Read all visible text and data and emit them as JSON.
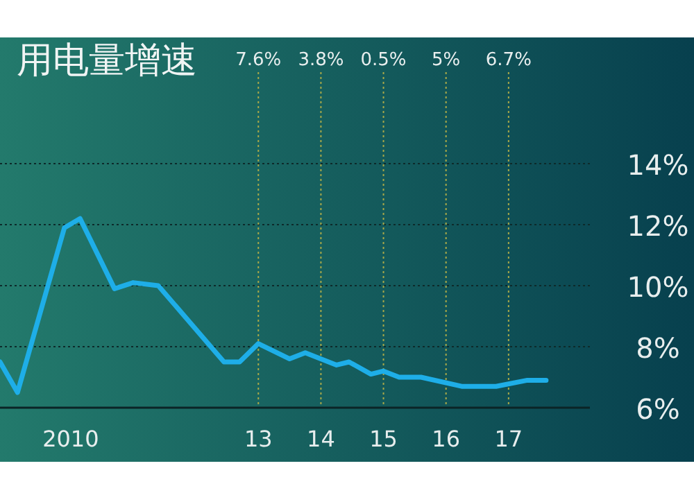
{
  "chart_data": {
    "type": "line",
    "title": "用电量增速",
    "x": [
      2008.87,
      2009.15,
      2009.9,
      2010.15,
      2010.7,
      2011.0,
      2011.4,
      2012.45,
      2012.7,
      2013.0,
      2013.5,
      2013.75,
      2014.25,
      2014.45,
      2014.8,
      2015.0,
      2015.25,
      2015.6,
      2016.25,
      2016.8,
      2017.3,
      2017.6
    ],
    "values": [
      7.5,
      6.5,
      11.9,
      12.2,
      9.9,
      10.1,
      10.0,
      7.5,
      7.5,
      8.1,
      7.6,
      7.8,
      7.4,
      7.5,
      7.1,
      7.2,
      7.0,
      7.0,
      6.7,
      6.7,
      6.9,
      6.9
    ],
    "color": "#1eaee8",
    "xlim": [
      2008.87,
      2018.3
    ],
    "xticks": [
      {
        "value": 2010,
        "label": "2010"
      },
      {
        "value": 2013,
        "label": "13"
      },
      {
        "value": 2014,
        "label": "14"
      },
      {
        "value": 2015,
        "label": "15"
      },
      {
        "value": 2016,
        "label": "16"
      },
      {
        "value": 2017,
        "label": "17"
      }
    ],
    "ylim": [
      6,
      17
    ],
    "yticks": [
      {
        "value": 6,
        "label": "6%"
      },
      {
        "value": 8,
        "label": "8%"
      },
      {
        "value": 10,
        "label": "10%"
      },
      {
        "value": 12,
        "label": "12%"
      },
      {
        "value": 14,
        "label": "14%"
      }
    ],
    "grid": "y",
    "ref_lines": [
      {
        "axis": "x",
        "value": 2013,
        "color": "#a8a848",
        "line_style": "dotted"
      },
      {
        "axis": "x",
        "value": 2014,
        "color": "#a8a848",
        "line_style": "dotted"
      },
      {
        "axis": "x",
        "value": 2015,
        "color": "#a8a848",
        "line_style": "dotted"
      },
      {
        "axis": "x",
        "value": 2016,
        "color": "#a8a848",
        "line_style": "dotted"
      },
      {
        "axis": "x",
        "value": 2017,
        "color": "#a8a848",
        "line_style": "dotted"
      }
    ],
    "annotations": [
      {
        "text": "7.6%",
        "x": 2013,
        "y": 17
      },
      {
        "text": "3.8%",
        "x": 2014,
        "y": 17
      },
      {
        "text": "0.5%",
        "x": 2015,
        "y": 17
      },
      {
        "text": "5%",
        "x": 2016,
        "y": 17
      },
      {
        "text": "6.7%",
        "x": 2017,
        "y": 17
      }
    ]
  }
}
